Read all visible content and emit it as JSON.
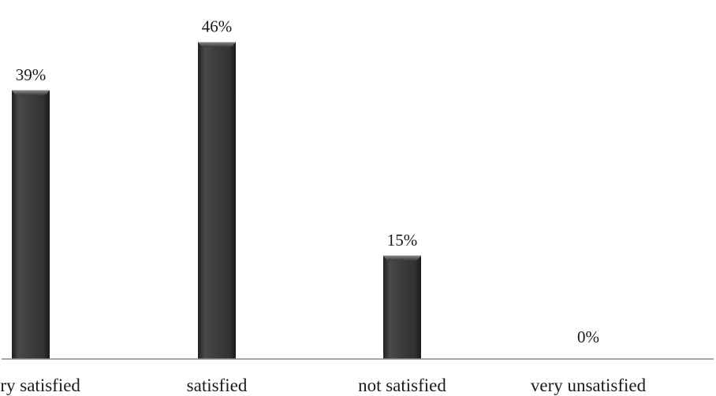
{
  "chart_data": {
    "type": "bar",
    "categories": [
      "Very satisfied",
      "satisfied",
      "not satisfied",
      "very unsatisfied"
    ],
    "values": [
      39,
      46,
      15,
      0
    ],
    "value_labels": [
      "39%",
      "46%",
      "15%",
      "0%"
    ],
    "ylim": [
      0,
      50
    ],
    "grid": false,
    "legend": "none",
    "bar_color": "#3b3b3b",
    "axis_color": "#8c8c8c"
  }
}
